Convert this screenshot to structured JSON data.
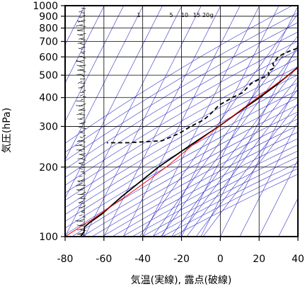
{
  "chart_data": {
    "type": "line",
    "title": "",
    "xlabel": "気温(実線), 露点(破線)",
    "ylabel": "気圧(hPa)",
    "xlim": [
      -80,
      40
    ],
    "ylim": [
      1000,
      100
    ],
    "y_scale": "log",
    "x_ticks": [
      "-80",
      "-60",
      "-40",
      "-20",
      "0",
      "20",
      "40"
    ],
    "y_ticks": [
      "100",
      "200",
      "300",
      "400",
      "500",
      "600",
      "700",
      "800",
      "900",
      "1000"
    ],
    "mixing_ratio_labels": [
      "1",
      "5",
      "10",
      "15",
      "20",
      "g"
    ],
    "colors": {
      "temperature": "#000000",
      "dewpoint": "#000000",
      "parcel": "#ff0000",
      "background_lines": "#3333cc",
      "grid": "#000000",
      "frame": "#000000"
    },
    "grid": true,
    "series": [
      {
        "line": "solid",
        "color": "#000000",
        "points": [
          [
            1000,
            27.5
          ],
          [
            975,
            26
          ],
          [
            950,
            24
          ],
          [
            925,
            22.5
          ],
          [
            900,
            21
          ],
          [
            875,
            19.5
          ],
          [
            850,
            18.5
          ],
          [
            800,
            14.5
          ],
          [
            750,
            11
          ],
          [
            700,
            8
          ],
          [
            650,
            4
          ],
          [
            600,
            0.5
          ],
          [
            550,
            -3.5
          ],
          [
            500,
            -7
          ],
          [
            450,
            -11
          ],
          [
            400,
            -16
          ],
          [
            350,
            -22.5
          ],
          [
            300,
            -29.5
          ],
          [
            250,
            -39
          ],
          [
            200,
            -50
          ],
          [
            150,
            -61
          ],
          [
            125,
            -67
          ],
          [
            115,
            -71
          ],
          [
            110,
            -72.5
          ],
          [
            105,
            -71.5
          ],
          [
            100,
            -72
          ]
        ]
      },
      {
        "line": "dashed",
        "color": "#000000",
        "points": [
          [
            1000,
            25
          ],
          [
            975,
            23.5
          ],
          [
            950,
            21.5
          ],
          [
            925,
            19.5
          ],
          [
            900,
            17.5
          ],
          [
            850,
            14
          ],
          [
            800,
            9.5
          ],
          [
            750,
            6
          ],
          [
            700,
            3
          ],
          [
            680,
            -2
          ],
          [
            660,
            -8
          ],
          [
            640,
            -12
          ],
          [
            620,
            -15
          ],
          [
            600,
            -17
          ],
          [
            560,
            -18
          ],
          [
            540,
            -16
          ],
          [
            520,
            -18.5
          ],
          [
            500,
            -17
          ],
          [
            480,
            -21
          ],
          [
            460,
            -24
          ],
          [
            420,
            -26
          ],
          [
            400,
            -30
          ],
          [
            370,
            -35
          ],
          [
            340,
            -37
          ],
          [
            320,
            -39
          ],
          [
            300,
            -44
          ],
          [
            280,
            -48
          ],
          [
            260,
            -55
          ],
          [
            255,
            -72
          ],
          [
            255,
            -83
          ]
        ]
      },
      {
        "line": "solid",
        "color": "#ff0000",
        "points": [
          [
            1000,
            29
          ],
          [
            950,
            25
          ],
          [
            900,
            21.5
          ],
          [
            850,
            18
          ],
          [
            800,
            15
          ],
          [
            750,
            11.5
          ],
          [
            700,
            8
          ],
          [
            600,
            1
          ],
          [
            500,
            -7
          ],
          [
            400,
            -17
          ],
          [
            300,
            -29.5
          ],
          [
            250,
            -38
          ],
          [
            200,
            -46
          ],
          [
            150,
            -59
          ],
          [
            120,
            -70
          ],
          [
            100,
            -80
          ]
        ]
      }
    ]
  }
}
